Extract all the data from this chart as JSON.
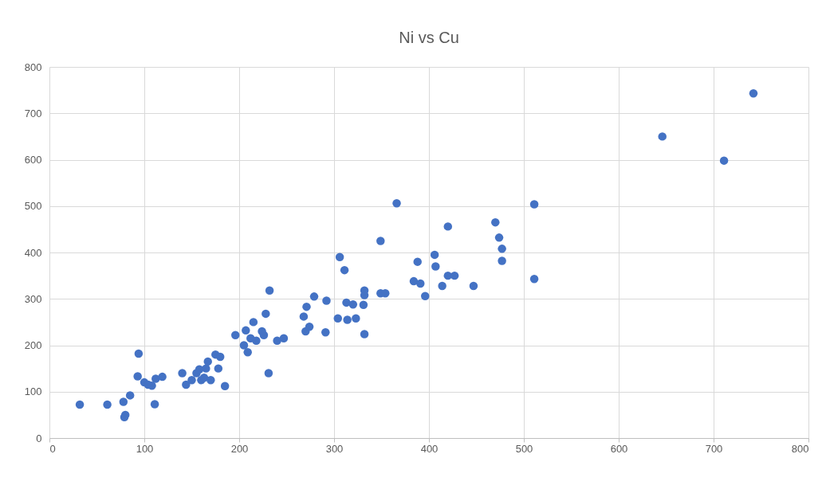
{
  "chart_data": {
    "type": "scatter",
    "title": "Ni vs Cu",
    "marker": "circle",
    "grid": true,
    "legend": false,
    "xlim": [
      0,
      800
    ],
    "xticks": [
      0,
      100,
      200,
      300,
      400,
      500,
      600,
      700,
      800
    ],
    "ylim": [
      0,
      800
    ],
    "yticks": [
      0,
      100,
      200,
      300,
      400,
      500,
      600,
      700,
      800
    ],
    "series": [
      {
        "color": "#4472c4",
        "x": [
          32,
          61,
          78,
          80,
          79,
          85,
          93,
          94,
          100,
          104,
          108,
          112,
          111,
          119,
          140,
          144,
          150,
          155,
          158,
          160,
          163,
          165,
          167,
          170,
          175,
          178,
          180,
          185,
          196,
          205,
          207,
          209,
          212,
          215,
          218,
          224,
          226,
          228,
          231,
          232,
          240,
          247,
          268,
          271,
          270,
          274,
          279,
          291,
          292,
          304,
          306,
          311,
          313,
          314,
          320,
          323,
          331,
          332,
          332,
          332,
          349,
          349,
          354,
          366,
          384,
          388,
          391,
          396,
          406,
          407,
          414,
          420,
          420,
          427,
          447,
          470,
          474,
          477,
          477,
          511,
          511,
          646,
          711,
          742
        ],
        "values": [
          72,
          72,
          78,
          50,
          45,
          92,
          133,
          182,
          120,
          115,
          113,
          128,
          73,
          132,
          140,
          115,
          125,
          140,
          148,
          125,
          130,
          150,
          165,
          125,
          180,
          150,
          175,
          112,
          222,
          200,
          232,
          185,
          215,
          250,
          210,
          230,
          222,
          268,
          140,
          318,
          210,
          215,
          262,
          283,
          230,
          240,
          305,
          228,
          296,
          258,
          390,
          362,
          292,
          255,
          288,
          258,
          287,
          308,
          318,
          224,
          425,
          312,
          312,
          506,
          338,
          380,
          333,
          306,
          395,
          370,
          328,
          456,
          350,
          350,
          328,
          465,
          432,
          408,
          382,
          504,
          343,
          650,
          598,
          743
        ]
      }
    ]
  }
}
